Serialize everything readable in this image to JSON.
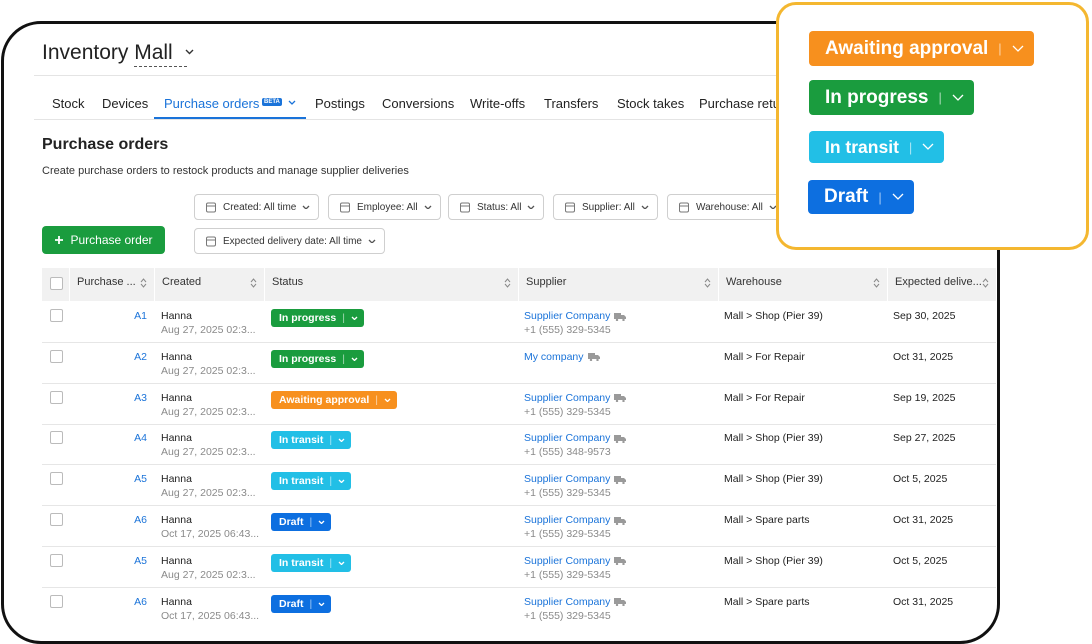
{
  "header": {
    "title": "Inventory Mall"
  },
  "tabs": [
    "Stock",
    "Devices",
    "Purchase orders",
    "Postings",
    "Conversions",
    "Write-offs",
    "Transfers",
    "Stock takes",
    "Purchase retu"
  ],
  "active_tab_badge": "BETA",
  "page": {
    "title": "Purchase orders",
    "subtitle": "Create purchase orders to restock products and manage supplier deliveries"
  },
  "filters": [
    "Created: All time",
    "Employee: All",
    "Status: All",
    "Supplier: All",
    "Warehouse: All",
    "Expected delivery date: All time"
  ],
  "create_button": "Purchase order",
  "status_legend": [
    {
      "label": "Awaiting approval",
      "color": "#f7901e"
    },
    {
      "label": "In progress",
      "color": "#1a9c3e"
    },
    {
      "label": "In transit",
      "color": "#22bfe6"
    },
    {
      "label": "Draft",
      "color": "#0d6fe0"
    }
  ],
  "table": {
    "columns": [
      "Purchase ...",
      "Created",
      "Status",
      "Supplier",
      "Warehouse",
      "Expected delive..."
    ],
    "rows": [
      {
        "id": "A1",
        "employee": "Hanna",
        "created": "Aug 27, 2025 02:3...",
        "status": "In progress",
        "supplier": "Supplier Company",
        "phone": "+1 (555) 329-5345",
        "warehouse": "Mall > Shop (Pier 39)",
        "expected_delivery": "Sep 30, 2025"
      },
      {
        "id": "A2",
        "employee": "Hanna",
        "created": "Aug 27, 2025 02:3...",
        "status": "In progress",
        "supplier": "My company",
        "warehouse": "Mall > For Repair",
        "expected_delivery": "Oct 31, 2025"
      },
      {
        "id": "A3",
        "employee": "Hanna",
        "created": "Aug 27, 2025 02:3...",
        "status": "Awaiting approval",
        "supplier": "Supplier Company",
        "phone": "+1 (555) 329-5345",
        "warehouse": "Mall > For Repair",
        "expected_delivery": "Sep 19, 2025"
      },
      {
        "id": "A4",
        "employee": "Hanna",
        "created": "Aug 27, 2025 02:3...",
        "status": "In transit",
        "supplier": "Supplier Company",
        "phone": "+1 (555) 348-9573",
        "warehouse": "Mall > Shop (Pier 39)",
        "expected_delivery": "Sep 27, 2025"
      },
      {
        "id": "A5",
        "employee": "Hanna",
        "created": "Aug 27, 2025 02:3...",
        "status": "In transit",
        "supplier": "Supplier Company",
        "phone": "+1 (555) 329-5345",
        "warehouse": "Mall > Shop (Pier 39)",
        "expected_delivery": "Oct 5, 2025"
      },
      {
        "id": "A6",
        "employee": "Hanna",
        "created": "Oct 17, 2025 06:43...",
        "status": "Draft",
        "supplier": "Supplier Company",
        "phone": "+1 (555) 329-5345",
        "warehouse": "Mall > Spare parts",
        "expected_delivery": "Oct 31, 2025"
      },
      {
        "id": "A5",
        "employee": "Hanna",
        "created": "Aug 27, 2025 02:3...",
        "status": "In transit",
        "supplier": "Supplier Company",
        "phone": "+1 (555) 329-5345",
        "warehouse": "Mall > Shop (Pier 39)",
        "expected_delivery": "Oct 5, 2025"
      },
      {
        "id": "A6",
        "employee": "Hanna",
        "created": "Oct 17, 2025 06:43...",
        "status": "Draft",
        "supplier": "Supplier Company",
        "phone": "+1 (555) 329-5345",
        "warehouse": "Mall > Spare parts",
        "expected_delivery": "Oct 31, 2025"
      }
    ]
  }
}
